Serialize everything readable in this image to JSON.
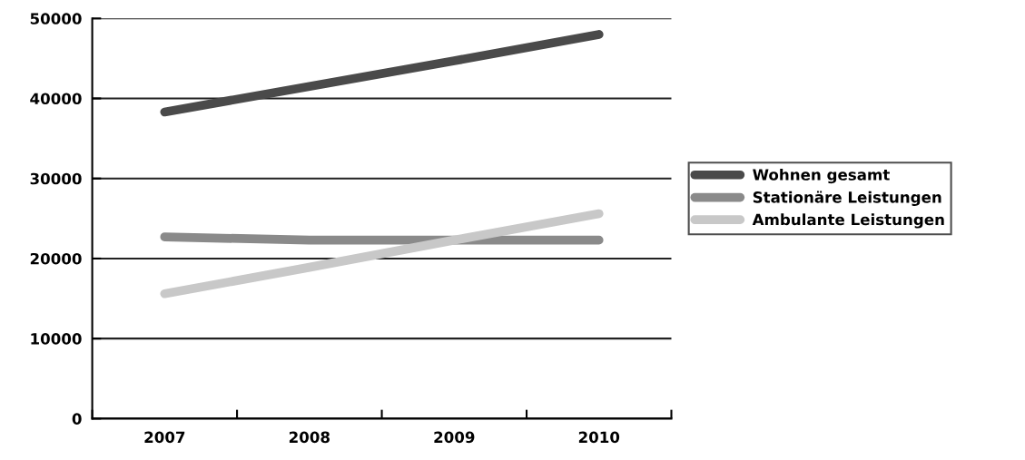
{
  "chart_data": {
    "type": "line",
    "categories": [
      "2007",
      "2008",
      "2009",
      "2010"
    ],
    "series": [
      {
        "name": "Wohnen gesamt",
        "color": "#4a4a4a",
        "values": [
          38300,
          41500,
          44700,
          48000
        ]
      },
      {
        "name": "Stationäre Leistungen",
        "color": "#8a8a8a",
        "values": [
          22700,
          22300,
          22300,
          22300
        ]
      },
      {
        "name": "Ambulante Leistungen",
        "color": "#c8c8c8",
        "values": [
          15600,
          18900,
          22300,
          25600
        ]
      }
    ],
    "ylim": [
      0,
      50000
    ],
    "yticks": [
      0,
      10000,
      20000,
      30000,
      40000,
      50000
    ],
    "grid": "y",
    "legend": "right",
    "marker": "none",
    "line_style": "solid"
  }
}
